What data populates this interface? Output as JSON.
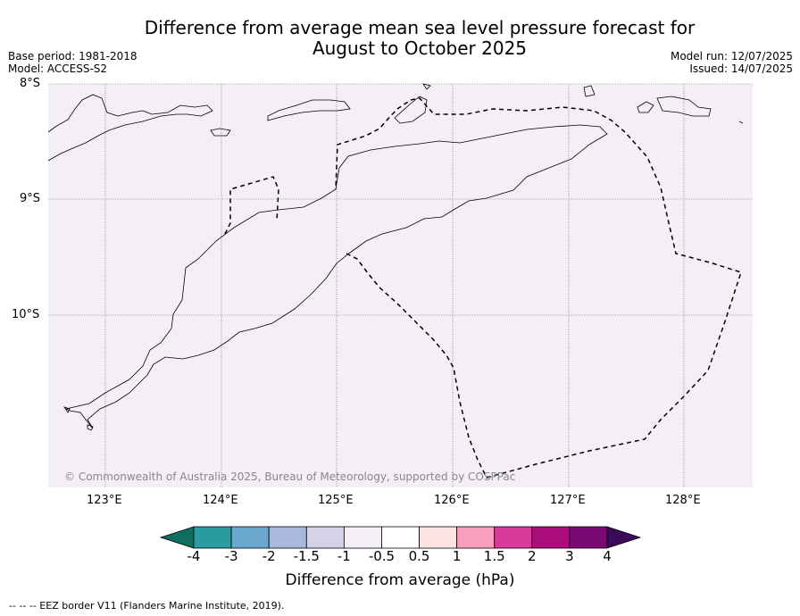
{
  "title_line1": "Difference from average mean sea level pressure forecast for",
  "title_line2": "August to October 2025",
  "base_period": "Base period: 1981-2018",
  "model": "Model: ACCESS-S2",
  "model_run": "Model run: 12/07/2025",
  "issued": "Issued: 14/07/2025",
  "copyright": "© Commonwealth of Australia 2025, Bureau of Meteorology, supported by COSPPac",
  "lat_labels": [
    "8°S",
    "9°S",
    "10°S"
  ],
  "lon_labels": [
    "123°E",
    "124°E",
    "125°E",
    "126°E",
    "127°E",
    "128°E"
  ],
  "colorbar": {
    "label": "Difference from average (hPa)",
    "ticks": [
      "-4",
      "-3",
      "-2",
      "-1.5",
      "-1",
      "-0.5",
      "0.5",
      "1",
      "1.5",
      "2",
      "3",
      "4"
    ],
    "colors": [
      "#0e6f5f",
      "#2a9b9e",
      "#6aa8d0",
      "#a8b9dc",
      "#d4d2e6",
      "#f4eef6",
      "#ffffff",
      "#fde2e2",
      "#f89fbf",
      "#d93a9a",
      "#ad0c7c",
      "#7a0a72",
      "#3d0a5a"
    ]
  },
  "map_fill_color": "#f4eef6",
  "footnote": "--  --  -- EEZ border V11 (Flanders Marine Institute, 2019)."
}
